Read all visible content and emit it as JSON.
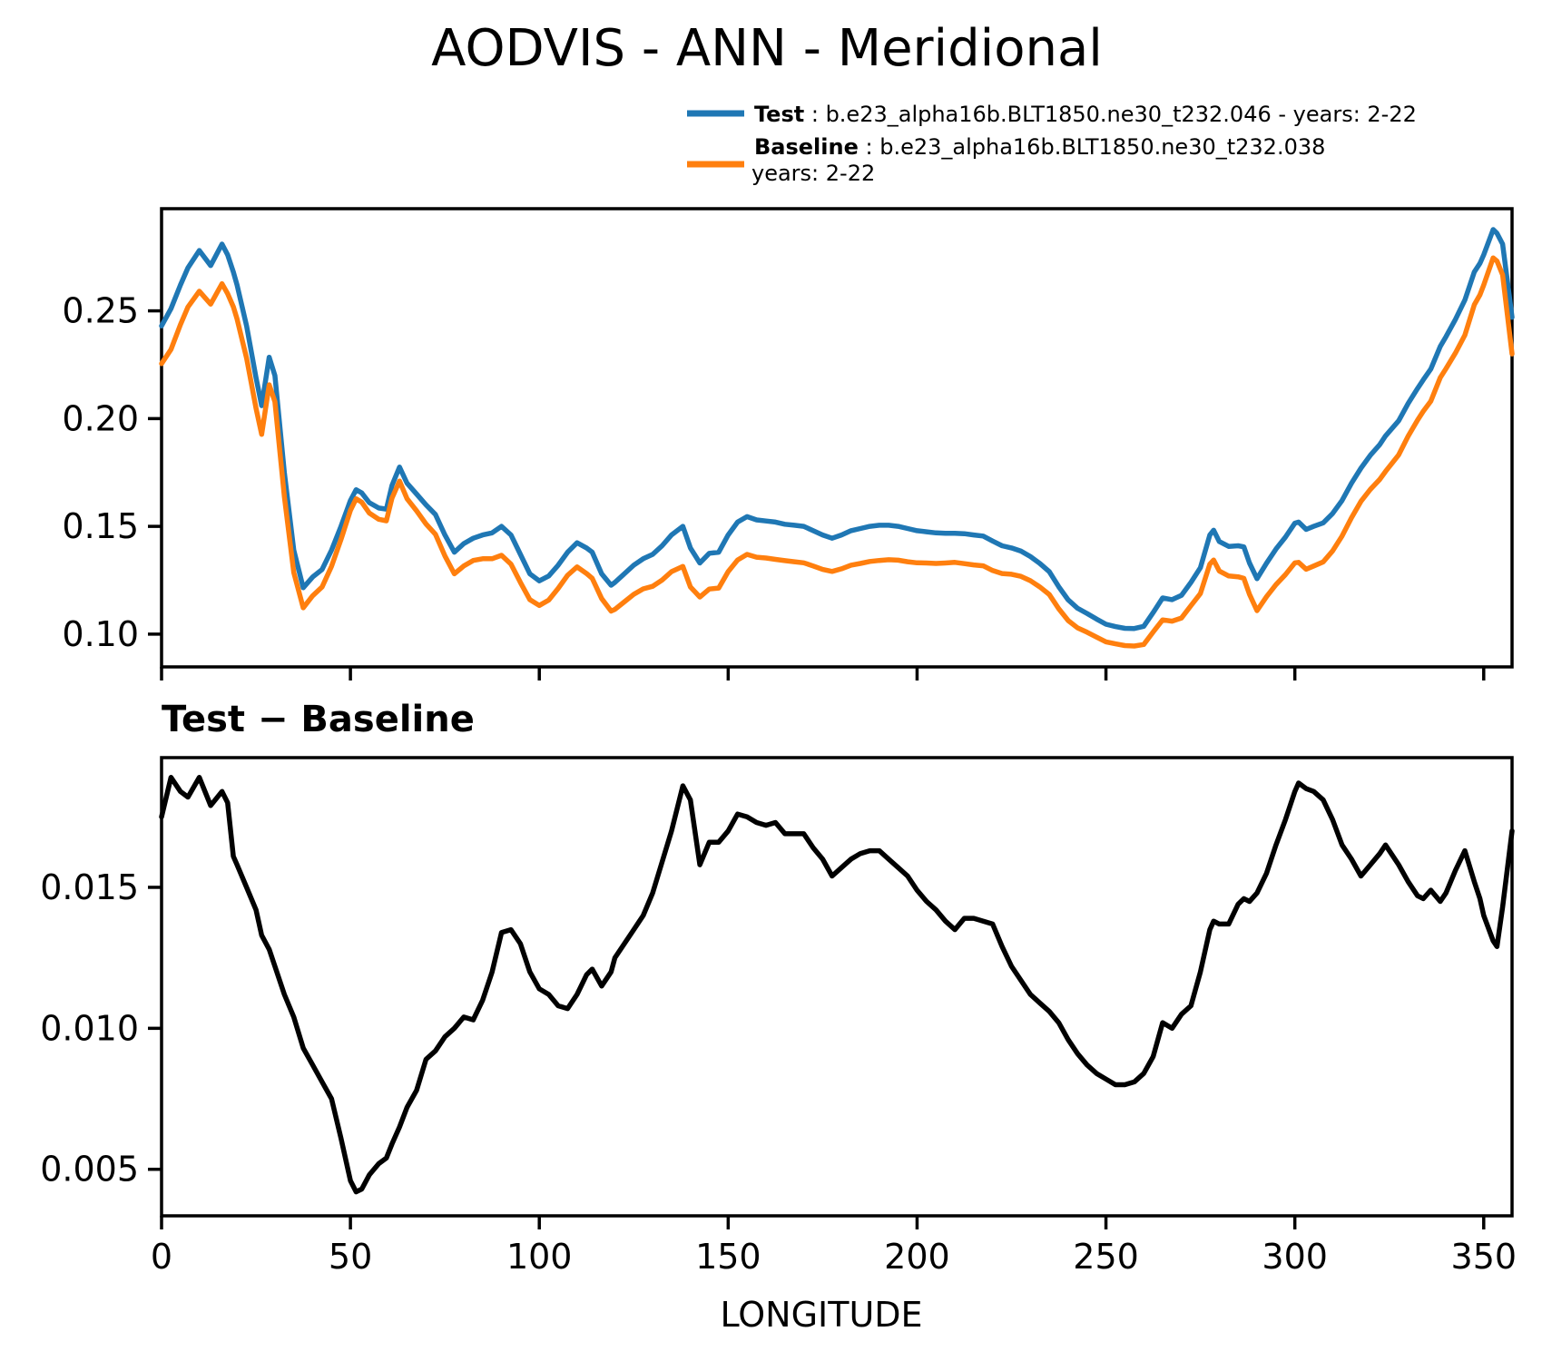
{
  "title": "AODVIS - ANN - Meridional",
  "legend": {
    "test_label": "Test",
    "test_sep": " : ",
    "test_desc": "b.e23_alpha16b.BLT1850.ne30_t232.046 - years: 2-22",
    "baseline_label": "Baseline",
    "baseline_sep": " : ",
    "baseline_desc": "b.e23_alpha16b.BLT1850.ne30_t232.038",
    "baseline_desc_line2": "years: 2-22"
  },
  "colors": {
    "test": "#1f77b4",
    "baseline": "#ff7f0e",
    "diff": "#000000",
    "axis": "#000000"
  },
  "chart_data": [
    {
      "type": "line",
      "title": "",
      "xlabel": "",
      "ylabel": "",
      "grid": false,
      "legend_position": "upper right, above axes",
      "xlim": [
        0,
        357.5
      ],
      "ylim": [
        0.0848,
        0.2974
      ],
      "xticks": [
        0,
        50,
        100,
        150,
        200,
        250,
        300,
        350
      ],
      "xticklabels": [],
      "yticks": [
        0.1,
        0.15,
        0.2,
        0.25
      ],
      "yticklabels": [
        "0.10",
        "0.15",
        "0.20",
        "0.25"
      ],
      "x": [
        0,
        2.5,
        5,
        7,
        10,
        13,
        16,
        17.5,
        19,
        20,
        22.5,
        25,
        26.5,
        28.5,
        30,
        32.5,
        35,
        37.5,
        40,
        42.5,
        45,
        47.5,
        50,
        51.5,
        53,
        55,
        57.5,
        59.5,
        61,
        63,
        65,
        67.5,
        70,
        72.5,
        75,
        77.5,
        80,
        82.5,
        85,
        87.5,
        90,
        92.5,
        95,
        97.5,
        100,
        102.5,
        105,
        107.5,
        110,
        112.5,
        114,
        116.5,
        119,
        120,
        122.5,
        125,
        127.5,
        130,
        132.5,
        135,
        138,
        140,
        142.5,
        145,
        147.5,
        150,
        152.5,
        155,
        157.5,
        160,
        162.5,
        165,
        167.5,
        170,
        172.5,
        175,
        177.5,
        180,
        182.5,
        185,
        187.5,
        190,
        192.5,
        195,
        197.5,
        200,
        202.5,
        205,
        207.5,
        210,
        212.5,
        215,
        217.5,
        220,
        222.5,
        225,
        227.5,
        230,
        232.5,
        235,
        237.5,
        240,
        242.5,
        245,
        247.5,
        250,
        252.5,
        255,
        257.5,
        260,
        262.5,
        265,
        267.5,
        270,
        272.5,
        275,
        277.5,
        278.5,
        280,
        282.5,
        285,
        286.5,
        288,
        290,
        292.5,
        295,
        297.5,
        300,
        301,
        303,
        305,
        307.5,
        310,
        312.5,
        315,
        317.5,
        320,
        322.5,
        324,
        327.5,
        330,
        332.5,
        334,
        336,
        338.5,
        340,
        342.5,
        345,
        347.5,
        349,
        350,
        352.5,
        353.5,
        355,
        357.5
      ],
      "series": [
        {
          "name": "Test : b.e23_alpha16b.BLT1850.ne30_t232.046 - years: 2-22",
          "color": "#1f77b4",
          "values": [
            0.243,
            0.251,
            0.262,
            0.27,
            0.278,
            0.271,
            0.281,
            0.276,
            0.268,
            0.262,
            0.243,
            0.219,
            0.206,
            0.2285,
            0.22,
            0.175,
            0.139,
            0.1215,
            0.1265,
            0.13,
            0.139,
            0.15,
            0.162,
            0.167,
            0.1655,
            0.161,
            0.1585,
            0.158,
            0.169,
            0.1775,
            0.17,
            0.165,
            0.16,
            0.1555,
            0.146,
            0.138,
            0.142,
            0.1445,
            0.146,
            0.147,
            0.15,
            0.146,
            0.137,
            0.128,
            0.1247,
            0.127,
            0.132,
            0.138,
            0.1424,
            0.14,
            0.138,
            0.128,
            0.1227,
            0.124,
            0.128,
            0.132,
            0.135,
            0.137,
            0.141,
            0.146,
            0.15,
            0.14,
            0.133,
            0.1375,
            0.138,
            0.146,
            0.152,
            0.1545,
            0.153,
            0.1525,
            0.152,
            0.151,
            0.1505,
            0.15,
            0.148,
            0.146,
            0.1445,
            0.146,
            0.148,
            0.149,
            0.15,
            0.1505,
            0.1505,
            0.15,
            0.149,
            0.148,
            0.1475,
            0.147,
            0.1468,
            0.1468,
            0.1466,
            0.146,
            0.1455,
            0.1432,
            0.141,
            0.14,
            0.1385,
            0.136,
            0.1328,
            0.129,
            0.122,
            0.1159,
            0.112,
            0.1096,
            0.107,
            0.1046,
            0.1035,
            0.1027,
            0.1026,
            0.1036,
            0.11,
            0.1168,
            0.116,
            0.118,
            0.124,
            0.1308,
            0.146,
            0.1482,
            0.143,
            0.1407,
            0.141,
            0.1405,
            0.133,
            0.1257,
            0.1329,
            0.1395,
            0.145,
            0.1515,
            0.152,
            0.1486,
            0.15,
            0.1516,
            0.156,
            0.162,
            0.17,
            0.177,
            0.183,
            0.188,
            0.192,
            0.199,
            0.207,
            0.214,
            0.218,
            0.223,
            0.2335,
            0.238,
            0.246,
            0.255,
            0.268,
            0.272,
            0.276,
            0.2877,
            0.286,
            0.281,
            0.247
          ]
        },
        {
          "name": "Baseline : b.e23_alpha16b.BLT1850.ne30_t232.038 years: 2-22",
          "color": "#ff7f0e",
          "values": [
            0.2255,
            0.2321,
            0.2436,
            0.2518,
            0.2591,
            0.2531,
            0.2626,
            0.258,
            0.2519,
            0.2462,
            0.228,
            0.2048,
            0.1927,
            0.2157,
            0.2078,
            0.1638,
            0.1286,
            0.1122,
            0.1178,
            0.1219,
            0.1315,
            0.1439,
            0.1574,
            0.1628,
            0.1612,
            0.1562,
            0.1533,
            0.1526,
            0.1631,
            0.171,
            0.1628,
            0.1572,
            0.1511,
            0.1463,
            0.1363,
            0.128,
            0.1316,
            0.1342,
            0.135,
            0.135,
            0.1366,
            0.1325,
            0.124,
            0.116,
            0.1133,
            0.1158,
            0.1212,
            0.1273,
            0.1312,
            0.1281,
            0.1259,
            0.1165,
            0.1107,
            0.1115,
            0.115,
            0.1185,
            0.121,
            0.1222,
            0.1251,
            0.129,
            0.1314,
            0.1219,
            0.1172,
            0.1209,
            0.1214,
            0.129,
            0.1344,
            0.137,
            0.1357,
            0.1353,
            0.1347,
            0.1341,
            0.1336,
            0.1331,
            0.1316,
            0.13,
            0.1291,
            0.1303,
            0.132,
            0.1328,
            0.1337,
            0.1342,
            0.1345,
            0.1343,
            0.1336,
            0.1331,
            0.133,
            0.1328,
            0.133,
            0.1333,
            0.1327,
            0.1321,
            0.1317,
            0.1295,
            0.1281,
            0.1278,
            0.1268,
            0.1248,
            0.1219,
            0.1184,
            0.1118,
            0.1063,
            0.1029,
            0.1009,
            0.0986,
            0.0964,
            0.0955,
            0.0947,
            0.0945,
            0.0952,
            0.101,
            0.1066,
            0.106,
            0.1075,
            0.1132,
            0.1188,
            0.1325,
            0.1344,
            0.1293,
            0.127,
            0.1266,
            0.1259,
            0.1185,
            0.1109,
            0.1174,
            0.123,
            0.1276,
            0.1331,
            0.1333,
            0.1301,
            0.1316,
            0.1335,
            0.1386,
            0.1455,
            0.154,
            0.1616,
            0.1672,
            0.1718,
            0.1755,
            0.1832,
            0.1918,
            0.1993,
            0.2034,
            0.2081,
            0.219,
            0.2232,
            0.2304,
            0.2387,
            0.2528,
            0.2574,
            0.262,
            0.2746,
            0.2731,
            0.2667,
            0.23
          ]
        }
      ]
    },
    {
      "type": "line",
      "title": "Test − Baseline",
      "xlabel": "LONGITUDE",
      "ylabel": "",
      "grid": false,
      "xlim": [
        0,
        357.5
      ],
      "ylim": [
        0.00335,
        0.0196
      ],
      "xticks": [
        0,
        50,
        100,
        150,
        200,
        250,
        300,
        350
      ],
      "xticklabels": [
        "0",
        "50",
        "100",
        "150",
        "200",
        "250",
        "300",
        "350"
      ],
      "yticks": [
        0.005,
        0.01,
        0.015
      ],
      "yticklabels": [
        "0.005",
        "0.010",
        "0.015"
      ],
      "x": [
        0,
        2.5,
        5,
        7,
        10,
        13,
        16,
        17.5,
        19,
        20,
        22.5,
        25,
        26.5,
        28.5,
        30,
        32.5,
        35,
        37.5,
        40,
        42.5,
        45,
        47.5,
        50,
        51.5,
        53,
        55,
        57.5,
        59.5,
        61,
        63,
        65,
        67.5,
        70,
        72.5,
        75,
        77.5,
        80,
        82.5,
        85,
        87.5,
        90,
        92.5,
        95,
        97.5,
        100,
        102.5,
        105,
        107.5,
        110,
        112.5,
        114,
        116.5,
        119,
        120,
        122.5,
        125,
        127.5,
        130,
        132.5,
        135,
        138,
        140,
        142.5,
        145,
        147.5,
        150,
        152.5,
        155,
        157.5,
        160,
        162.5,
        165,
        167.5,
        170,
        172.5,
        175,
        177.5,
        180,
        182.5,
        185,
        187.5,
        190,
        192.5,
        195,
        197.5,
        200,
        202.5,
        205,
        207.5,
        210,
        212.5,
        215,
        217.5,
        220,
        222.5,
        225,
        227.5,
        230,
        232.5,
        235,
        237.5,
        240,
        242.5,
        245,
        247.5,
        250,
        252.5,
        255,
        257.5,
        260,
        262.5,
        265,
        267.5,
        270,
        272.5,
        275,
        277.5,
        278.5,
        280,
        282.5,
        285,
        286.5,
        288,
        290,
        292.5,
        295,
        297.5,
        300,
        301,
        303,
        305,
        307.5,
        310,
        312.5,
        315,
        317.5,
        320,
        322.5,
        324,
        327.5,
        330,
        332.5,
        334,
        336,
        338.5,
        340,
        342.5,
        345,
        347.5,
        349,
        350,
        352.5,
        353.5,
        355,
        357.5
      ],
      "series": [
        {
          "name": "Test − Baseline",
          "color": "#000000",
          "values": [
            0.0175,
            0.0189,
            0.0184,
            0.0182,
            0.0189,
            0.0179,
            0.0184,
            0.018,
            0.0161,
            0.0158,
            0.015,
            0.0142,
            0.0133,
            0.0128,
            0.0122,
            0.0112,
            0.0104,
            0.0093,
            0.0087,
            0.0081,
            0.0075,
            0.0061,
            0.0046,
            0.0042,
            0.0043,
            0.0048,
            0.0052,
            0.0054,
            0.0059,
            0.0065,
            0.0072,
            0.0078,
            0.0089,
            0.0092,
            0.0097,
            0.01,
            0.0104,
            0.0103,
            0.011,
            0.012,
            0.0134,
            0.0135,
            0.013,
            0.012,
            0.0114,
            0.0112,
            0.0108,
            0.0107,
            0.0112,
            0.0119,
            0.0121,
            0.0115,
            0.012,
            0.0125,
            0.013,
            0.0135,
            0.014,
            0.0148,
            0.0159,
            0.017,
            0.0186,
            0.0181,
            0.0158,
            0.0166,
            0.0166,
            0.017,
            0.0176,
            0.0175,
            0.0173,
            0.0172,
            0.0173,
            0.0169,
            0.0169,
            0.0169,
            0.0164,
            0.016,
            0.0154,
            0.0157,
            0.016,
            0.0162,
            0.0163,
            0.0163,
            0.016,
            0.0157,
            0.0154,
            0.0149,
            0.0145,
            0.0142,
            0.0138,
            0.0135,
            0.0139,
            0.0139,
            0.0138,
            0.0137,
            0.0129,
            0.0122,
            0.0117,
            0.0112,
            0.0109,
            0.0106,
            0.0102,
            0.0096,
            0.0091,
            0.0087,
            0.0084,
            0.0082,
            0.008,
            0.008,
            0.0081,
            0.0084,
            0.009,
            0.0102,
            0.01,
            0.0105,
            0.0108,
            0.012,
            0.0135,
            0.0138,
            0.0137,
            0.0137,
            0.0144,
            0.0146,
            0.0145,
            0.0148,
            0.0155,
            0.0165,
            0.0174,
            0.0184,
            0.0187,
            0.0185,
            0.0184,
            0.0181,
            0.0174,
            0.0165,
            0.016,
            0.0154,
            0.0158,
            0.0162,
            0.0165,
            0.0158,
            0.0152,
            0.0147,
            0.0146,
            0.0149,
            0.0145,
            0.0148,
            0.0156,
            0.0163,
            0.0152,
            0.0146,
            0.014,
            0.0131,
            0.0129,
            0.0143,
            0.017
          ]
        }
      ]
    }
  ]
}
